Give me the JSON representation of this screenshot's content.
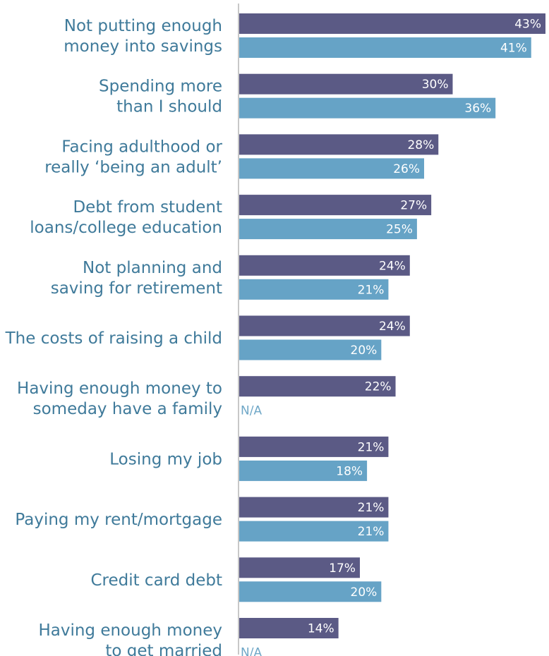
{
  "chart_data": {
    "type": "bar",
    "orientation": "horizontal",
    "categories": [
      [
        "Not putting enough",
        "money into savings"
      ],
      [
        "Spending more",
        "than I should"
      ],
      [
        "Facing adulthood or",
        "really ‘being an adult’"
      ],
      [
        "Debt from student",
        "loans/college education"
      ],
      [
        "Not planning and",
        "saving for retirement"
      ],
      [
        "The costs of raising a child"
      ],
      [
        "Having enough money to",
        "someday have a family"
      ],
      [
        "Losing my job"
      ],
      [
        "Paying my rent/mortgage"
      ],
      [
        "Credit card debt"
      ],
      [
        "Having enough money",
        "to get married"
      ]
    ],
    "series": [
      {
        "color": "#5b5a85",
        "values": [
          43,
          30,
          28,
          27,
          24,
          24,
          22,
          21,
          21,
          17,
          14
        ],
        "labels": [
          "43%",
          "30%",
          "28%",
          "27%",
          "24%",
          "24%",
          "22%",
          "21%",
          "21%",
          "17%",
          "14%"
        ]
      },
      {
        "color": "#66a3c6",
        "values": [
          41,
          36,
          26,
          25,
          21,
          20,
          null,
          18,
          21,
          20,
          null
        ],
        "labels": [
          "41%",
          "36%",
          "26%",
          "25%",
          "21%",
          "20%",
          "N/A",
          "18%",
          "21%",
          "20%",
          "N/A"
        ]
      }
    ],
    "xlim": [
      0,
      43
    ],
    "axis_color": "#c8c8c8",
    "label_color": "#3f7a9a",
    "na_color": "#6fa7c7",
    "grid": false
  }
}
